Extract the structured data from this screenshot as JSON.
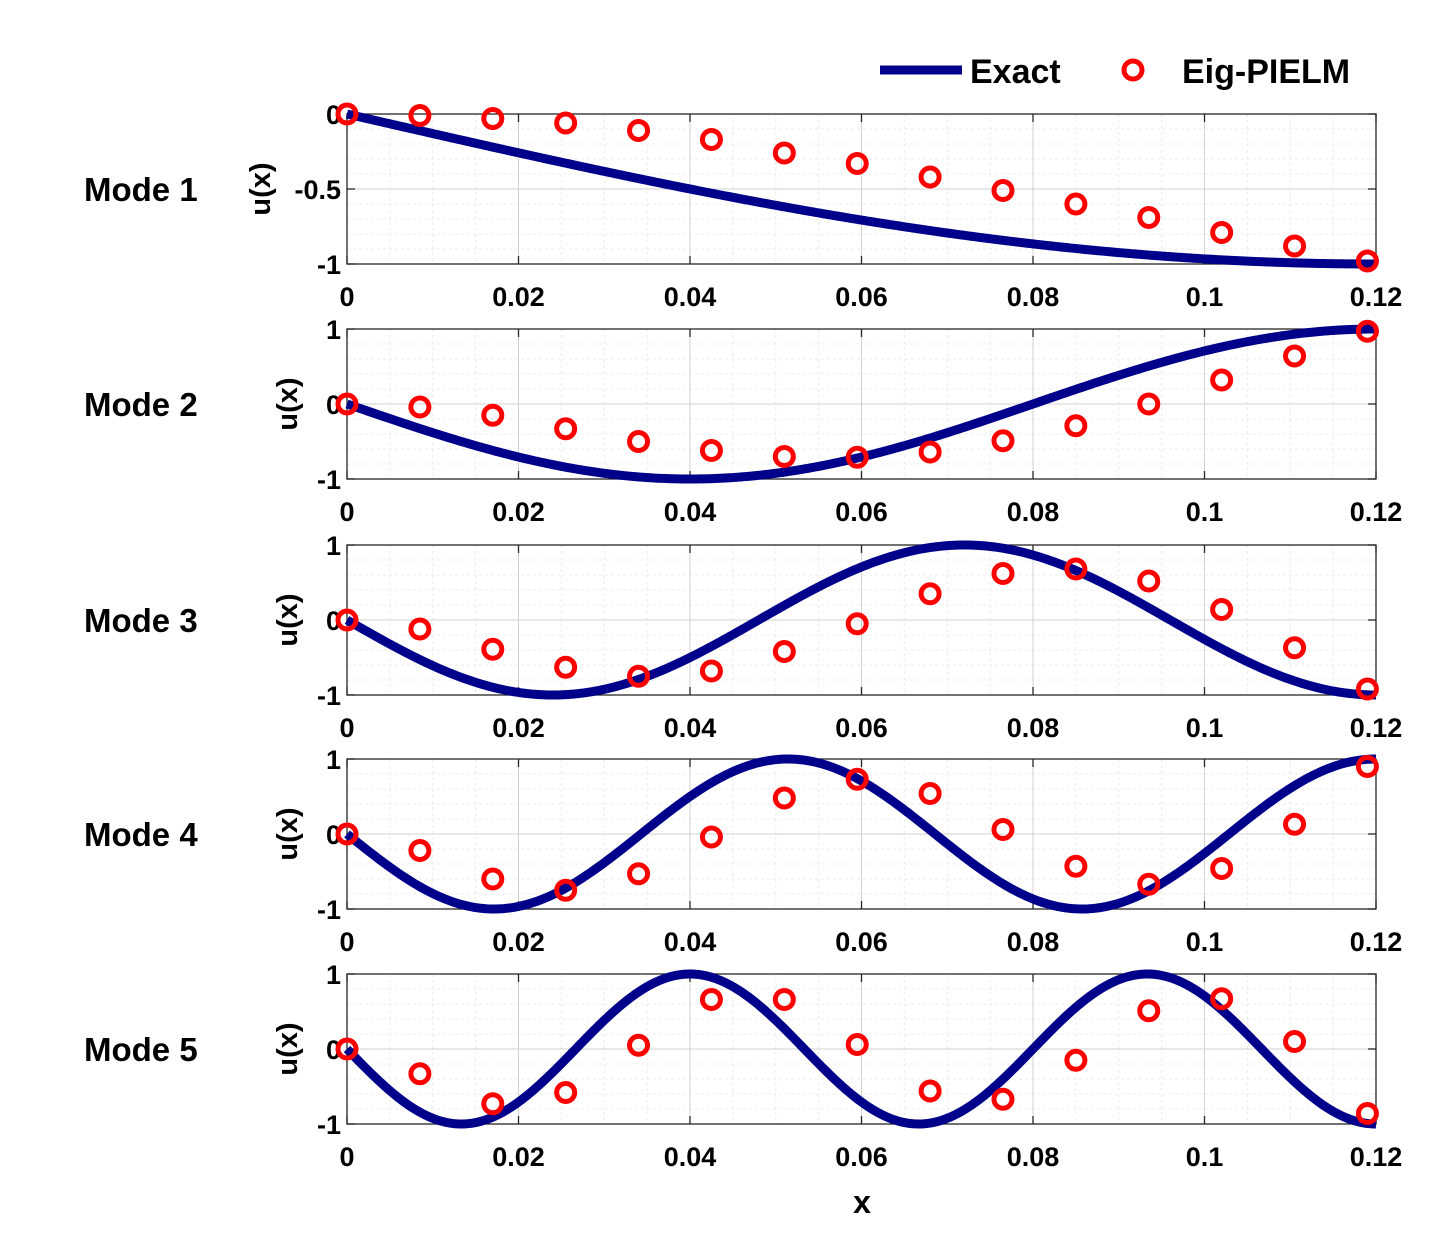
{
  "legend": {
    "exact_label": "Exact",
    "eig_label": "Eig-PIELM",
    "placement": "top-right, outside axes"
  },
  "colors": {
    "exact_line": "#00008B",
    "eig_marker": "#FF0000",
    "grid_major": "#d0d0d0",
    "grid_minor": "#ececec",
    "axis": "#262626"
  },
  "chart_data": [
    {
      "type": "line",
      "title": "Mode 1",
      "xlabel": "",
      "ylabel": "u(x)",
      "xlim": [
        0,
        0.12
      ],
      "ylim": [
        -1,
        0
      ],
      "xticks": [
        0,
        0.02,
        0.04,
        0.06,
        0.08,
        0.1,
        0.12
      ],
      "xtick_labels": [
        "0",
        "0.02",
        "0.04",
        "0.06",
        "0.08",
        "0.1",
        "0.12"
      ],
      "yticks": [
        -1,
        -0.5,
        0
      ],
      "ytick_labels": [
        "-1",
        "-0.5",
        "0"
      ],
      "grid": true,
      "series": [
        {
          "name": "Exact",
          "kind": "line",
          "mode": 1,
          "sign": -1,
          "xmax": 0.12
        },
        {
          "name": "Eig-PIELM",
          "kind": "markers",
          "x": [
            0,
            0.0085,
            0.017,
            0.0255,
            0.034,
            0.0425,
            0.051,
            0.0595,
            0.068,
            0.0765,
            0.085,
            0.0935,
            0.102,
            0.1105,
            0.119
          ],
          "y": [
            0,
            -0.01,
            -0.03,
            -0.06,
            -0.11,
            -0.17,
            -0.26,
            -0.33,
            -0.42,
            -0.51,
            -0.6,
            -0.69,
            -0.79,
            -0.88,
            -0.98
          ]
        }
      ]
    },
    {
      "type": "line",
      "title": "Mode 2",
      "xlabel": "",
      "ylabel": "u(x)",
      "xlim": [
        0,
        0.12
      ],
      "ylim": [
        -1,
        1
      ],
      "xticks": [
        0,
        0.02,
        0.04,
        0.06,
        0.08,
        0.1,
        0.12
      ],
      "xtick_labels": [
        "0",
        "0.02",
        "0.04",
        "0.06",
        "0.08",
        "0.1",
        "0.12"
      ],
      "yticks": [
        -1,
        0,
        1
      ],
      "ytick_labels": [
        "-1",
        "0",
        "1"
      ],
      "grid": true,
      "series": [
        {
          "name": "Exact",
          "kind": "line",
          "mode": 2,
          "sign": -1,
          "xmax": 0.12
        },
        {
          "name": "Eig-PIELM",
          "kind": "markers",
          "x": [
            0,
            0.0085,
            0.017,
            0.0255,
            0.034,
            0.0425,
            0.051,
            0.0595,
            0.068,
            0.0765,
            0.085,
            0.0935,
            0.102,
            0.1105,
            0.119
          ],
          "y": [
            0,
            -0.04,
            -0.15,
            -0.33,
            -0.5,
            -0.62,
            -0.7,
            -0.71,
            -0.64,
            -0.49,
            -0.29,
            0,
            0.32,
            0.64,
            0.97
          ]
        }
      ]
    },
    {
      "type": "line",
      "title": "Mode 3",
      "xlabel": "",
      "ylabel": "u(x)",
      "xlim": [
        0,
        0.12
      ],
      "ylim": [
        -1,
        1
      ],
      "xticks": [
        0,
        0.02,
        0.04,
        0.06,
        0.08,
        0.1,
        0.12
      ],
      "xtick_labels": [
        "0",
        "0.02",
        "0.04",
        "0.06",
        "0.08",
        "0.1",
        "0.12"
      ],
      "yticks": [
        -1,
        0,
        1
      ],
      "ytick_labels": [
        "-1",
        "0",
        "1"
      ],
      "grid": true,
      "series": [
        {
          "name": "Exact",
          "kind": "line",
          "mode": 3,
          "sign": -1,
          "xmax": 0.12
        },
        {
          "name": "Eig-PIELM",
          "kind": "markers",
          "x": [
            0,
            0.0085,
            0.017,
            0.0255,
            0.034,
            0.0425,
            0.051,
            0.0595,
            0.068,
            0.0765,
            0.085,
            0.0935,
            0.102,
            0.1105,
            0.119
          ],
          "y": [
            0,
            -0.12,
            -0.39,
            -0.63,
            -0.75,
            -0.68,
            -0.42,
            -0.05,
            0.35,
            0.62,
            0.68,
            0.52,
            0.14,
            -0.37,
            -0.92
          ]
        }
      ]
    },
    {
      "type": "line",
      "title": "Mode 4",
      "xlabel": "",
      "ylabel": "u(x)",
      "xlim": [
        0,
        0.12
      ],
      "ylim": [
        -1,
        1
      ],
      "xticks": [
        0,
        0.02,
        0.04,
        0.06,
        0.08,
        0.1,
        0.12
      ],
      "xtick_labels": [
        "0",
        "0.02",
        "0.04",
        "0.06",
        "0.08",
        "0.1",
        "0.12"
      ],
      "yticks": [
        -1,
        0,
        1
      ],
      "ytick_labels": [
        "-1",
        "0",
        "1"
      ],
      "grid": true,
      "series": [
        {
          "name": "Exact",
          "kind": "line",
          "mode": 4,
          "sign": -1,
          "xmax": 0.12
        },
        {
          "name": "Eig-PIELM",
          "kind": "markers",
          "x": [
            0,
            0.0085,
            0.017,
            0.0255,
            0.034,
            0.0425,
            0.051,
            0.0595,
            0.068,
            0.0765,
            0.085,
            0.0935,
            0.102,
            0.1105,
            0.119
          ],
          "y": [
            0,
            -0.22,
            -0.6,
            -0.75,
            -0.53,
            -0.04,
            0.48,
            0.73,
            0.54,
            0.06,
            -0.43,
            -0.67,
            -0.46,
            0.13,
            0.9
          ]
        }
      ]
    },
    {
      "type": "line",
      "title": "Mode 5",
      "xlabel": "x",
      "ylabel": "u(x)",
      "xlim": [
        0,
        0.12
      ],
      "ylim": [
        -1,
        1
      ],
      "xticks": [
        0,
        0.02,
        0.04,
        0.06,
        0.08,
        0.1,
        0.12
      ],
      "xtick_labels": [
        "0",
        "0.02",
        "0.04",
        "0.06",
        "0.08",
        "0.1",
        "0.12"
      ],
      "yticks": [
        -1,
        0,
        1
      ],
      "ytick_labels": [
        "-1",
        "0",
        "1"
      ],
      "grid": true,
      "series": [
        {
          "name": "Exact",
          "kind": "line",
          "mode": 5,
          "sign": -1,
          "xmax": 0.12
        },
        {
          "name": "Eig-PIELM",
          "kind": "markers",
          "x": [
            0,
            0.0085,
            0.017,
            0.0255,
            0.034,
            0.0425,
            0.051,
            0.0595,
            0.068,
            0.0765,
            0.085,
            0.0935,
            0.102,
            0.1105,
            0.119
          ],
          "y": [
            0,
            -0.33,
            -0.73,
            -0.58,
            0.05,
            0.66,
            0.66,
            0.06,
            -0.56,
            -0.67,
            -0.15,
            0.51,
            0.67,
            0.1,
            -0.86
          ]
        }
      ]
    }
  ]
}
